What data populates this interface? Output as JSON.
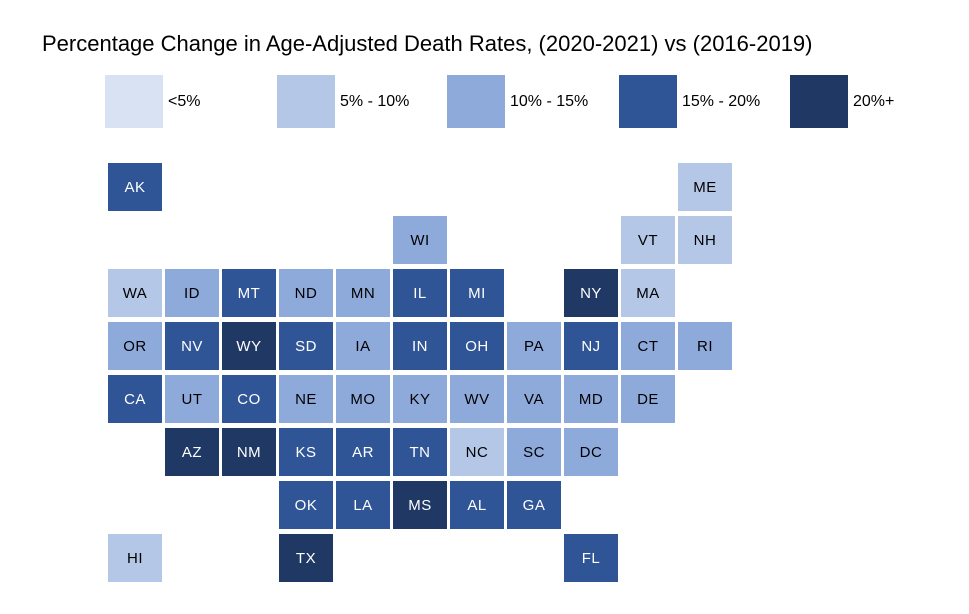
{
  "title": "Percentage Change in Age-Adjusted Death Rates, (2020-2021) vs (2016-2019)",
  "legend": [
    {
      "label": "<5%",
      "color": "#D9E2F3"
    },
    {
      "label": "5% - 10%",
      "color": "#B4C7E7"
    },
    {
      "label": "10% - 15%",
      "color": "#8EAADB"
    },
    {
      "label": "15% - 20%",
      "color": "#2F5597"
    },
    {
      "label": "20%+",
      "color": "#1F3864"
    }
  ],
  "text_colors": {
    "on_light": "#000000",
    "on_dark": "#ffffff"
  },
  "chart_data": {
    "type": "heatmap",
    "subtype": "state-tile-grid-map",
    "title": "Percentage Change in Age-Adjusted Death Rates, (2020-2021) vs (2016-2019)",
    "legend_position": "top",
    "bins": [
      "<5%",
      "5% - 10%",
      "10% - 15%",
      "15% - 20%",
      "20%+"
    ],
    "bin_colors": [
      "#D9E2F3",
      "#B4C7E7",
      "#8EAADB",
      "#2F5597",
      "#1F3864"
    ],
    "states": [
      {
        "abbr": "AK",
        "col": 1,
        "row": 1,
        "bin": "15% - 20%"
      },
      {
        "abbr": "ME",
        "col": 11,
        "row": 1,
        "bin": "5% - 10%"
      },
      {
        "abbr": "WI",
        "col": 6,
        "row": 2,
        "bin": "10% - 15%"
      },
      {
        "abbr": "VT",
        "col": 10,
        "row": 2,
        "bin": "5% - 10%"
      },
      {
        "abbr": "NH",
        "col": 11,
        "row": 2,
        "bin": "5% - 10%"
      },
      {
        "abbr": "WA",
        "col": 1,
        "row": 3,
        "bin": "5% - 10%"
      },
      {
        "abbr": "ID",
        "col": 2,
        "row": 3,
        "bin": "10% - 15%"
      },
      {
        "abbr": "MT",
        "col": 3,
        "row": 3,
        "bin": "15% - 20%"
      },
      {
        "abbr": "ND",
        "col": 4,
        "row": 3,
        "bin": "10% - 15%"
      },
      {
        "abbr": "MN",
        "col": 5,
        "row": 3,
        "bin": "10% - 15%"
      },
      {
        "abbr": "IL",
        "col": 6,
        "row": 3,
        "bin": "15% - 20%"
      },
      {
        "abbr": "MI",
        "col": 7,
        "row": 3,
        "bin": "15% - 20%"
      },
      {
        "abbr": "NY",
        "col": 9,
        "row": 3,
        "bin": "20%+"
      },
      {
        "abbr": "MA",
        "col": 10,
        "row": 3,
        "bin": "5% - 10%"
      },
      {
        "abbr": "OR",
        "col": 1,
        "row": 4,
        "bin": "10% - 15%"
      },
      {
        "abbr": "NV",
        "col": 2,
        "row": 4,
        "bin": "15% - 20%"
      },
      {
        "abbr": "WY",
        "col": 3,
        "row": 4,
        "bin": "20%+"
      },
      {
        "abbr": "SD",
        "col": 4,
        "row": 4,
        "bin": "15% - 20%"
      },
      {
        "abbr": "IA",
        "col": 5,
        "row": 4,
        "bin": "10% - 15%"
      },
      {
        "abbr": "IN",
        "col": 6,
        "row": 4,
        "bin": "15% - 20%"
      },
      {
        "abbr": "OH",
        "col": 7,
        "row": 4,
        "bin": "15% - 20%"
      },
      {
        "abbr": "PA",
        "col": 8,
        "row": 4,
        "bin": "10% - 15%"
      },
      {
        "abbr": "NJ",
        "col": 9,
        "row": 4,
        "bin": "15% - 20%"
      },
      {
        "abbr": "CT",
        "col": 10,
        "row": 4,
        "bin": "10% - 15%"
      },
      {
        "abbr": "RI",
        "col": 11,
        "row": 4,
        "bin": "10% - 15%"
      },
      {
        "abbr": "CA",
        "col": 1,
        "row": 5,
        "bin": "15% - 20%"
      },
      {
        "abbr": "UT",
        "col": 2,
        "row": 5,
        "bin": "10% - 15%"
      },
      {
        "abbr": "CO",
        "col": 3,
        "row": 5,
        "bin": "15% - 20%"
      },
      {
        "abbr": "NE",
        "col": 4,
        "row": 5,
        "bin": "10% - 15%"
      },
      {
        "abbr": "MO",
        "col": 5,
        "row": 5,
        "bin": "10% - 15%"
      },
      {
        "abbr": "KY",
        "col": 6,
        "row": 5,
        "bin": "10% - 15%"
      },
      {
        "abbr": "WV",
        "col": 7,
        "row": 5,
        "bin": "10% - 15%"
      },
      {
        "abbr": "VA",
        "col": 8,
        "row": 5,
        "bin": "10% - 15%"
      },
      {
        "abbr": "MD",
        "col": 9,
        "row": 5,
        "bin": "10% - 15%"
      },
      {
        "abbr": "DE",
        "col": 10,
        "row": 5,
        "bin": "10% - 15%"
      },
      {
        "abbr": "AZ",
        "col": 2,
        "row": 6,
        "bin": "20%+"
      },
      {
        "abbr": "NM",
        "col": 3,
        "row": 6,
        "bin": "20%+"
      },
      {
        "abbr": "KS",
        "col": 4,
        "row": 6,
        "bin": "15% - 20%"
      },
      {
        "abbr": "AR",
        "col": 5,
        "row": 6,
        "bin": "15% - 20%"
      },
      {
        "abbr": "TN",
        "col": 6,
        "row": 6,
        "bin": "15% - 20%"
      },
      {
        "abbr": "NC",
        "col": 7,
        "row": 6,
        "bin": "5% - 10%"
      },
      {
        "abbr": "SC",
        "col": 8,
        "row": 6,
        "bin": "10% - 15%"
      },
      {
        "abbr": "DC",
        "col": 9,
        "row": 6,
        "bin": "10% - 15%"
      },
      {
        "abbr": "OK",
        "col": 4,
        "row": 7,
        "bin": "15% - 20%"
      },
      {
        "abbr": "LA",
        "col": 5,
        "row": 7,
        "bin": "15% - 20%"
      },
      {
        "abbr": "MS",
        "col": 6,
        "row": 7,
        "bin": "20%+"
      },
      {
        "abbr": "AL",
        "col": 7,
        "row": 7,
        "bin": "15% - 20%"
      },
      {
        "abbr": "GA",
        "col": 8,
        "row": 7,
        "bin": "15% - 20%"
      },
      {
        "abbr": "HI",
        "col": 1,
        "row": 8,
        "bin": "5% - 10%"
      },
      {
        "abbr": "TX",
        "col": 4,
        "row": 8,
        "bin": "20%+"
      },
      {
        "abbr": "FL",
        "col": 9,
        "row": 8,
        "bin": "15% - 20%"
      }
    ]
  }
}
